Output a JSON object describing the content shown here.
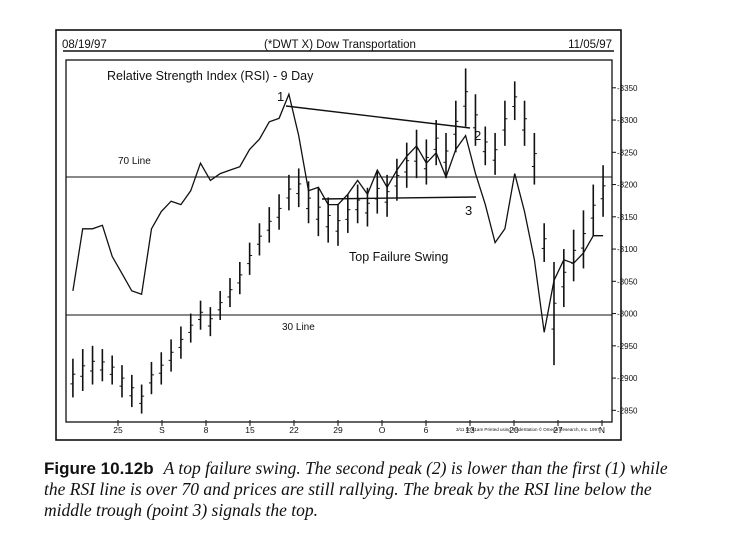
{
  "chart_data": {
    "type": "line",
    "header": {
      "date_left": "08/19/97",
      "symbol": "(*DWT X) Dow Transportation",
      "date_right": "11/05/97"
    },
    "title": "Relative Strength Index (RSI) - 9 Day",
    "annotations": {
      "peak1": "1",
      "peak2": "2",
      "trough3": "3",
      "line70": "70 Line",
      "line30": "30 Line",
      "pattern": "Top Failure Swing",
      "footer_credit": "3/11 10:51am Printed using TradeStation © Omega Research, Inc. 1997"
    },
    "x_ticks": [
      "25",
      "S",
      "8",
      "15",
      "22",
      "29",
      "O",
      "6",
      "13",
      "20",
      "27",
      "N"
    ],
    "y_ticks": [
      "3350",
      "3300",
      "3250",
      "3200",
      "3150",
      "3100",
      "3050",
      "3000",
      "2950",
      "2900",
      "2850"
    ],
    "ylim": [
      2835,
      3390
    ],
    "n_bars": 55,
    "rsi_levels": {
      "overbought": 70,
      "oversold": 30
    },
    "rsi_values": [
      37,
      55,
      55,
      56,
      47,
      42,
      37,
      36,
      55,
      60,
      63,
      62,
      66,
      74,
      69,
      71,
      72,
      73,
      78,
      81,
      86,
      87,
      94,
      82,
      66,
      67,
      62,
      62,
      65,
      69,
      65,
      72,
      67,
      72,
      76,
      79,
      74,
      77,
      70,
      78,
      82,
      71,
      62,
      51,
      55,
      71,
      60,
      46,
      25,
      40,
      46,
      45,
      48,
      53,
      53
    ],
    "price_bars": [
      [
        2930,
        2870
      ],
      [
        2945,
        2880
      ],
      [
        2950,
        2890
      ],
      [
        2945,
        2895
      ],
      [
        2935,
        2890
      ],
      [
        2920,
        2870
      ],
      [
        2905,
        2855
      ],
      [
        2890,
        2845
      ],
      [
        2925,
        2875
      ],
      [
        2940,
        2890
      ],
      [
        2960,
        2910
      ],
      [
        2980,
        2930
      ],
      [
        3000,
        2955
      ],
      [
        3020,
        2975
      ],
      [
        3010,
        2965
      ],
      [
        3035,
        2990
      ],
      [
        3055,
        3010
      ],
      [
        3080,
        3030
      ],
      [
        3110,
        3060
      ],
      [
        3140,
        3090
      ],
      [
        3165,
        3110
      ],
      [
        3185,
        3130
      ],
      [
        3215,
        3160
      ],
      [
        3225,
        3165
      ],
      [
        3205,
        3140
      ],
      [
        3195,
        3120
      ],
      [
        3180,
        3110
      ],
      [
        3170,
        3105
      ],
      [
        3185,
        3125
      ],
      [
        3200,
        3140
      ],
      [
        3195,
        3135
      ],
      [
        3220,
        3155
      ],
      [
        3215,
        3150
      ],
      [
        3240,
        3175
      ],
      [
        3265,
        3195
      ],
      [
        3285,
        3210
      ],
      [
        3270,
        3200
      ],
      [
        3300,
        3230
      ],
      [
        3280,
        3210
      ],
      [
        3330,
        3250
      ],
      [
        3380,
        3290
      ],
      [
        3340,
        3260
      ],
      [
        3290,
        3230
      ],
      [
        3280,
        3215
      ],
      [
        3330,
        3260
      ],
      [
        3360,
        3300
      ],
      [
        3330,
        3260
      ],
      [
        3280,
        3200
      ],
      [
        3140,
        3080
      ],
      [
        3080,
        2920
      ],
      [
        3100,
        3010
      ],
      [
        3130,
        3050
      ],
      [
        3160,
        3070
      ],
      [
        3200,
        3120
      ],
      [
        3230,
        3150
      ]
    ]
  },
  "caption": {
    "label": "Figure 10.12b",
    "text": "A top failure swing. The second peak (2) is lower than the first (1) while the RSI line is over 70 and prices are still rallying. The break by the RSI line below the middle trough (point 3) signals the top."
  }
}
